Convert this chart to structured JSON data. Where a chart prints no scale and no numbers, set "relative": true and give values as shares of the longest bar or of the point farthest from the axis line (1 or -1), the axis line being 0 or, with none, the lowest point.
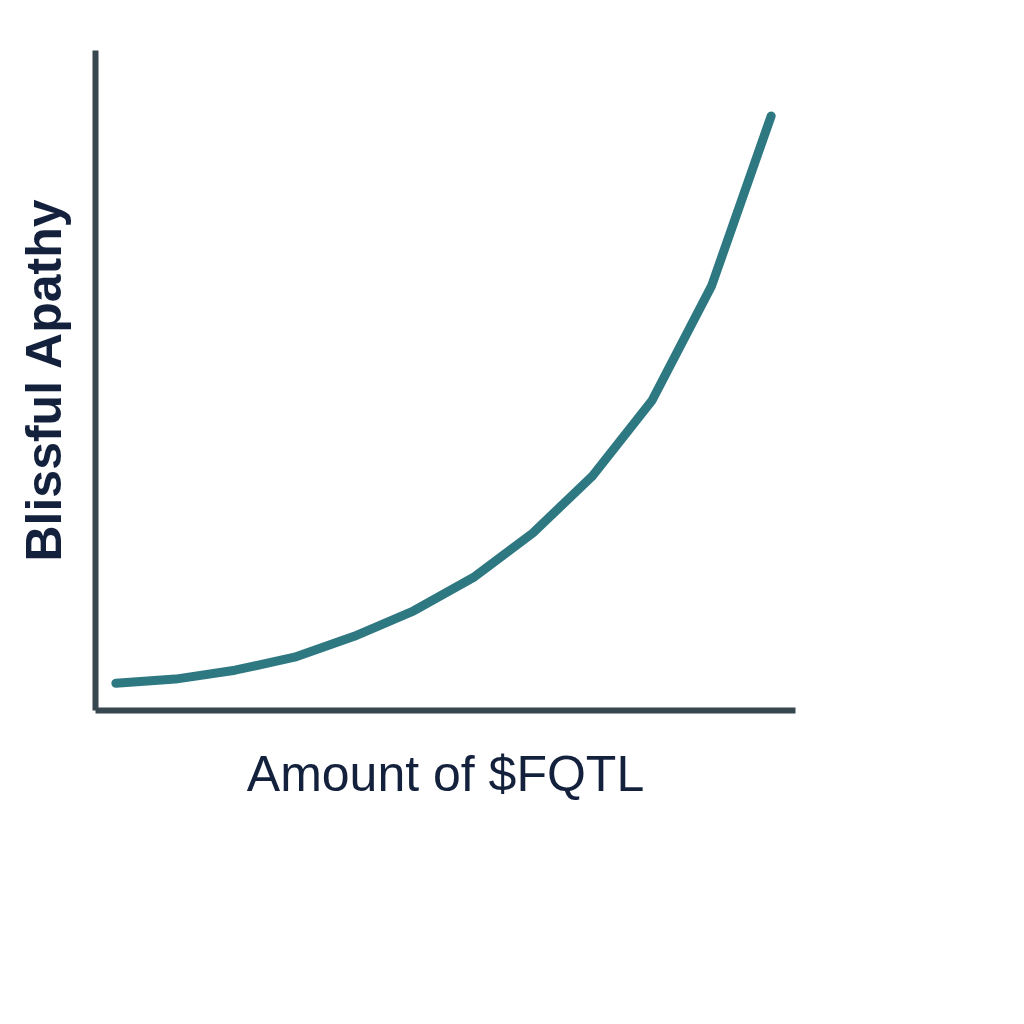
{
  "chart_data": {
    "type": "line",
    "relative": true,
    "xlabel": "Amount of $FQTL",
    "ylabel": "Blissful Apathy",
    "categories": [
      null,
      null,
      null,
      null,
      null,
      null,
      null,
      null,
      null,
      null,
      null,
      null
    ],
    "series": [
      {
        "color": "#2e7882",
        "values": [
          0.045,
          0.052,
          0.067,
          0.089,
          0.124,
          0.167,
          0.223,
          0.298,
          0.394,
          0.521,
          0.714,
          1
        ]
      }
    ],
    "legend": false,
    "tick_labels": false,
    "line_style": "solid"
  }
}
